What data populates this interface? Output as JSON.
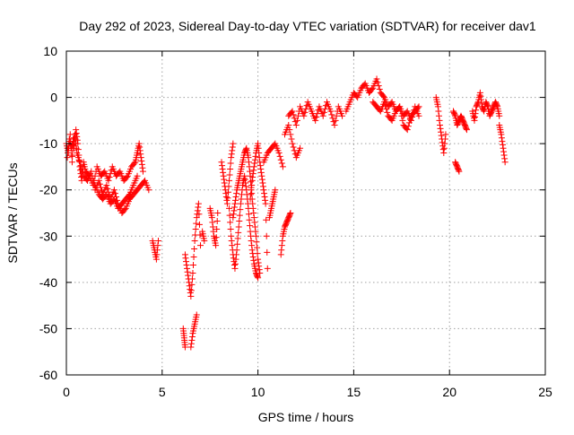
{
  "chart_data": {
    "type": "scatter",
    "title": "Day 292 of 2023, Sidereal Day-to-day VTEC variation (SDTVAR) for receiver dav1",
    "xlabel": "GPS time / hours",
    "ylabel": "SDTVAR / TECUs",
    "xlim": [
      0,
      25
    ],
    "ylim": [
      -60,
      10
    ],
    "xticks": [
      0,
      5,
      10,
      15,
      20,
      25
    ],
    "yticks": [
      -60,
      -50,
      -40,
      -30,
      -20,
      -10,
      0,
      10
    ],
    "xtick_labels": [
      "0",
      "5",
      "10",
      "15",
      "20",
      "25"
    ],
    "ytick_labels": [
      "-60",
      "-50",
      "-40",
      "-30",
      "-20",
      "-10",
      "0",
      "10"
    ],
    "grid": true,
    "marker": "+",
    "series": [
      {
        "name": "SDTVAR",
        "color": "#ff0000",
        "segments": [
          {
            "x": [
              0.0,
              0.1,
              0.2,
              0.3,
              0.35,
              0.4,
              0.5,
              0.6,
              0.7,
              0.8,
              0.9,
              1.0,
              1.2,
              1.4,
              1.6,
              1.8,
              2.0,
              2.2,
              2.4,
              2.6,
              2.8,
              3.0,
              3.2,
              3.4,
              3.6,
              3.7,
              3.8,
              3.9,
              4.0
            ],
            "y": [
              -10,
              -12,
              -8,
              -14,
              -9,
              -11,
              -7,
              -10,
              -15,
              -18,
              -14,
              -16,
              -17,
              -19,
              -15,
              -17,
              -16,
              -18,
              -15,
              -17,
              -16,
              -18,
              -17,
              -15,
              -14,
              -12,
              -10,
              -13,
              -16
            ]
          },
          {
            "x": [
              0.05,
              0.15,
              0.25,
              0.45,
              0.55,
              0.7,
              0.9,
              1.1,
              1.3,
              1.5,
              1.7,
              1.9,
              2.1,
              2.3,
              2.5,
              2.7,
              2.9,
              3.1,
              3.3,
              3.5,
              3.7,
              3.9,
              4.1,
              4.3
            ],
            "y": [
              -13,
              -9,
              -11,
              -8,
              -12,
              -14,
              -17,
              -18,
              -16,
              -20,
              -18,
              -21,
              -19,
              -22,
              -20,
              -23,
              -25,
              -24,
              -22,
              -21,
              -20,
              -19,
              -18,
              -20
            ]
          },
          {
            "x": [
              1.5,
              1.7,
              1.9,
              2.1,
              2.3,
              2.5,
              2.7,
              2.9,
              3.1,
              3.3,
              3.5,
              3.7
            ],
            "y": [
              -19,
              -21,
              -22,
              -21,
              -23,
              -22,
              -24,
              -23,
              -22,
              -21,
              -19,
              -17
            ]
          },
          {
            "x": [
              4.5,
              4.6,
              4.7,
              4.8
            ],
            "y": [
              -31,
              -33,
              -35,
              -31
            ]
          },
          {
            "x": [
              6.1,
              6.15,
              6.2
            ],
            "y": [
              -50,
              -52,
              -54
            ]
          },
          {
            "x": [
              6.2,
              6.3,
              6.4,
              6.5,
              6.6,
              6.7,
              6.8,
              6.9,
              7.0
            ],
            "y": [
              -34,
              -37,
              -40,
              -43,
              -38,
              -31,
              -26,
              -23,
              -32
            ]
          },
          {
            "x": [
              6.5,
              6.6,
              6.7,
              6.8
            ],
            "y": [
              -54,
              -51,
              -49,
              -47
            ]
          },
          {
            "x": [
              7.1,
              7.2
            ],
            "y": [
              -29,
              -31
            ]
          },
          {
            "x": [
              7.5,
              7.6,
              7.7,
              7.8,
              7.9
            ],
            "y": [
              -24,
              -26,
              -30,
              -32,
              -25
            ]
          },
          {
            "x": [
              8.1,
              8.2,
              8.3,
              8.4,
              8.5,
              8.6,
              8.7
            ],
            "y": [
              -14,
              -17,
              -20,
              -23,
              -18,
              -13,
              -10
            ]
          },
          {
            "x": [
              8.5,
              8.6,
              8.7,
              8.8,
              8.9,
              9.0,
              9.1,
              9.2,
              9.3,
              9.4,
              9.5,
              9.6,
              9.7,
              9.8,
              9.9,
              10.0
            ],
            "y": [
              -24,
              -30,
              -34,
              -37,
              -33,
              -28,
              -23,
              -19,
              -17,
              -20,
              -24,
              -29,
              -33,
              -36,
              -38,
              -39
            ]
          },
          {
            "x": [
              8.7,
              8.8,
              8.9,
              9.0,
              9.1,
              9.2,
              9.3,
              9.4,
              9.5,
              9.6,
              9.7,
              9.8,
              9.9,
              10.0,
              10.1
            ],
            "y": [
              -26,
              -23,
              -20,
              -18,
              -16,
              -14,
              -12,
              -11,
              -13,
              -17,
              -22,
              -26,
              -30,
              -35,
              -38
            ]
          },
          {
            "x": [
              9.6,
              9.7,
              9.8,
              9.9,
              10.0,
              10.1,
              10.2,
              10.3,
              10.4,
              10.5
            ],
            "y": [
              -22,
              -18,
              -15,
              -12,
              -10,
              -14,
              -17,
              -20,
              -23,
              -37
            ]
          },
          {
            "x": [
              10.6,
              10.7,
              10.8,
              10.9
            ],
            "y": [
              -26,
              -24,
              -22,
              -20
            ]
          },
          {
            "x": [
              10.3,
              10.5,
              10.7,
              10.9,
              11.1,
              11.3
            ],
            "y": [
              -14,
              -12,
              -11,
              -10,
              -12,
              -15
            ]
          },
          {
            "x": [
              11.2,
              11.3,
              11.4,
              11.5,
              11.6,
              11.7
            ],
            "y": [
              -34,
              -30,
              -28,
              -27,
              -26,
              -25
            ]
          },
          {
            "x": [
              11.4,
              11.6,
              11.8,
              12.0,
              12.2
            ],
            "y": [
              -8,
              -6,
              -10,
              -13,
              -11
            ]
          },
          {
            "x": [
              11.6,
              11.8,
              12.0,
              12.2,
              12.4,
              12.6,
              12.8,
              13.0,
              13.2,
              13.4,
              13.6,
              13.8,
              14.0,
              14.2,
              14.4
            ],
            "y": [
              -4,
              -3,
              -6,
              -2,
              -4,
              -1,
              -3,
              -5,
              -2,
              -4,
              -1,
              -3,
              -6,
              -2,
              -4
            ]
          },
          {
            "x": [
              14.6,
              14.8,
              15.0,
              15.2,
              15.4,
              15.6,
              15.8,
              16.0,
              16.2,
              16.4,
              16.6,
              16.8,
              17.0,
              17.2,
              17.4,
              17.6,
              17.8,
              18.0,
              18.2,
              18.4
            ],
            "y": [
              -3,
              -1,
              1,
              0,
              2,
              3,
              1,
              2,
              4,
              1,
              0,
              -2,
              -1,
              -3,
              -2,
              -4,
              -3,
              -5,
              -2,
              -4
            ]
          },
          {
            "x": [
              16.0,
              16.2,
              16.4,
              16.6,
              16.8,
              17.0,
              17.2,
              17.4,
              17.6,
              17.8,
              18.0,
              18.2,
              18.4
            ],
            "y": [
              -1,
              -2,
              -3,
              -1,
              -4,
              -5,
              -3,
              -2,
              -6,
              -7,
              -4,
              -3,
              -2
            ]
          },
          {
            "x": [
              19.3,
              19.4,
              19.5,
              19.6,
              19.7,
              19.8
            ],
            "y": [
              0,
              -2,
              -6,
              -9,
              -12,
              -8
            ]
          },
          {
            "x": [
              20.2,
              20.3,
              20.4,
              20.5,
              20.6,
              20.7,
              20.8,
              20.9
            ],
            "y": [
              -3,
              -4,
              -6,
              -5,
              -4,
              -5,
              -6,
              -7
            ]
          },
          {
            "x": [
              20.3,
              20.4,
              20.5
            ],
            "y": [
              -14,
              -15,
              -16
            ]
          },
          {
            "x": [
              21.2,
              21.3,
              21.4,
              21.5,
              21.6,
              21.7,
              21.8,
              21.9,
              22.0,
              22.1,
              22.2,
              22.3,
              22.4,
              22.5,
              22.6
            ],
            "y": [
              -3,
              -5,
              -2,
              -1,
              1,
              -2,
              -3,
              -1,
              -2,
              -4,
              -3,
              -2,
              -1,
              -2,
              -4
            ]
          },
          {
            "x": [
              22.6,
              22.7,
              22.8,
              22.9
            ],
            "y": [
              -6,
              -8,
              -11,
              -14
            ]
          }
        ]
      }
    ]
  }
}
